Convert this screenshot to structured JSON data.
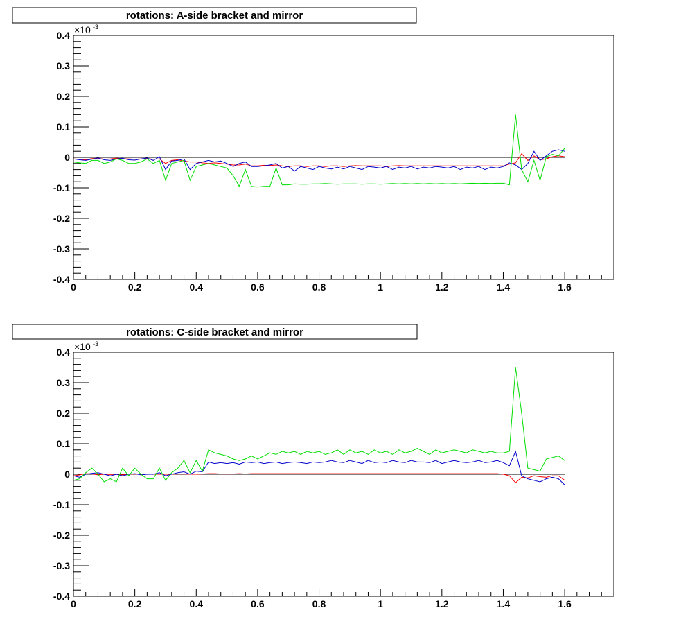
{
  "chart_data": [
    {
      "type": "line",
      "title": "rotations: A-side bracket and mirror",
      "xlim": [
        0,
        1.76
      ],
      "ylim": [
        -0.4,
        0.4
      ],
      "y_exponent_label": "×10",
      "y_exponent_power": "-3",
      "x_ticks": [
        "0",
        "0.2",
        "0.4",
        "0.6",
        "0.8",
        "1",
        "1.2",
        "1.4",
        "1.6"
      ],
      "y_ticks": [
        "-0.4",
        "-0.3",
        "-0.2",
        "-0.1",
        "0",
        "0.1",
        "0.2",
        "0.3",
        "0.4"
      ],
      "reference_line_y": 0,
      "x": [
        0,
        0.02,
        0.04,
        0.06,
        0.08,
        0.1,
        0.12,
        0.14,
        0.16,
        0.18,
        0.2,
        0.22,
        0.24,
        0.26,
        0.28,
        0.3,
        0.32,
        0.34,
        0.36,
        0.38,
        0.4,
        0.42,
        0.44,
        0.46,
        0.48,
        0.5,
        0.52,
        0.54,
        0.56,
        0.58,
        0.6,
        0.62,
        0.64,
        0.66,
        0.68,
        0.7,
        0.72,
        0.74,
        0.76,
        0.78,
        0.8,
        0.82,
        0.84,
        0.86,
        0.88,
        0.9,
        0.92,
        0.94,
        0.96,
        0.98,
        1.0,
        1.02,
        1.04,
        1.06,
        1.08,
        1.1,
        1.12,
        1.14,
        1.16,
        1.18,
        1.2,
        1.22,
        1.24,
        1.26,
        1.28,
        1.3,
        1.32,
        1.34,
        1.36,
        1.38,
        1.4,
        1.42,
        1.44,
        1.46,
        1.48,
        1.5,
        1.52,
        1.54,
        1.56,
        1.58,
        1.6
      ],
      "series": [
        {
          "color": "#ff0000",
          "values": [
            -0.005,
            -0.006,
            -0.008,
            -0.004,
            -0.003,
            -0.006,
            -0.005,
            -0.003,
            -0.004,
            -0.005,
            -0.006,
            -0.005,
            -0.004,
            -0.006,
            -0.005,
            -0.02,
            -0.01,
            -0.008,
            -0.012,
            -0.015,
            -0.015,
            -0.018,
            -0.02,
            -0.018,
            -0.02,
            -0.022,
            -0.025,
            -0.025,
            -0.022,
            -0.028,
            -0.028,
            -0.026,
            -0.027,
            -0.025,
            -0.028,
            -0.03,
            -0.028,
            -0.028,
            -0.03,
            -0.028,
            -0.028,
            -0.03,
            -0.028,
            -0.028,
            -0.03,
            -0.028,
            -0.027,
            -0.028,
            -0.028,
            -0.028,
            -0.028,
            -0.03,
            -0.028,
            -0.027,
            -0.028,
            -0.028,
            -0.028,
            -0.028,
            -0.028,
            -0.028,
            -0.028,
            -0.028,
            -0.028,
            -0.028,
            -0.028,
            -0.028,
            -0.028,
            -0.028,
            -0.028,
            -0.028,
            -0.028,
            -0.022,
            -0.018,
            0.012,
            -0.01,
            0.005,
            -0.008,
            -0.005,
            0.002,
            0.005,
            0.002
          ]
        },
        {
          "color": "#0000cc",
          "values": [
            -0.005,
            -0.008,
            -0.01,
            -0.006,
            -0.002,
            -0.008,
            -0.01,
            -0.005,
            -0.003,
            -0.008,
            -0.009,
            -0.005,
            -0.002,
            -0.01,
            0.002,
            -0.04,
            -0.012,
            -0.01,
            -0.005,
            -0.04,
            -0.02,
            -0.015,
            -0.01,
            -0.015,
            -0.012,
            -0.02,
            -0.03,
            -0.02,
            -0.015,
            -0.03,
            -0.03,
            -0.028,
            -0.025,
            -0.02,
            -0.035,
            -0.03,
            -0.045,
            -0.03,
            -0.035,
            -0.04,
            -0.03,
            -0.035,
            -0.038,
            -0.032,
            -0.038,
            -0.03,
            -0.035,
            -0.04,
            -0.03,
            -0.032,
            -0.035,
            -0.03,
            -0.04,
            -0.032,
            -0.035,
            -0.03,
            -0.038,
            -0.032,
            -0.035,
            -0.03,
            -0.032,
            -0.035,
            -0.03,
            -0.04,
            -0.032,
            -0.035,
            -0.03,
            -0.04,
            -0.032,
            -0.035,
            -0.03,
            -0.018,
            -0.025,
            -0.04,
            -0.02,
            0.02,
            -0.01,
            0.005,
            0.02,
            0.025,
            0.02
          ]
        },
        {
          "color": "#00dd00",
          "values": [
            -0.015,
            -0.018,
            -0.02,
            -0.01,
            -0.01,
            -0.02,
            -0.015,
            -0.005,
            -0.01,
            -0.02,
            -0.02,
            -0.015,
            -0.005,
            -0.02,
            -0.01,
            -0.075,
            -0.02,
            -0.015,
            -0.01,
            -0.075,
            -0.03,
            -0.025,
            -0.02,
            -0.025,
            -0.03,
            -0.035,
            -0.06,
            -0.095,
            -0.04,
            -0.095,
            -0.097,
            -0.095,
            -0.095,
            -0.035,
            -0.09,
            -0.09,
            -0.087,
            -0.088,
            -0.088,
            -0.087,
            -0.087,
            -0.086,
            -0.087,
            -0.088,
            -0.087,
            -0.087,
            -0.087,
            -0.088,
            -0.087,
            -0.087,
            -0.088,
            -0.087,
            -0.086,
            -0.087,
            -0.086,
            -0.087,
            -0.086,
            -0.087,
            -0.086,
            -0.087,
            -0.086,
            -0.087,
            -0.086,
            -0.087,
            -0.086,
            -0.085,
            -0.086,
            -0.085,
            -0.086,
            -0.085,
            -0.085,
            -0.09,
            0.14,
            -0.04,
            -0.08,
            -0.01,
            -0.075,
            0.002,
            0.01,
            0.005,
            0.03
          ]
        }
      ]
    },
    {
      "type": "line",
      "title": "rotations: C-side bracket and mirror",
      "xlim": [
        0,
        1.76
      ],
      "ylim": [
        -0.4,
        0.4
      ],
      "y_exponent_label": "×10",
      "y_exponent_power": "-3",
      "x_ticks": [
        "0",
        "0.2",
        "0.4",
        "0.6",
        "0.8",
        "1",
        "1.2",
        "1.4",
        "1.6"
      ],
      "y_ticks": [
        "-0.4",
        "-0.3",
        "-0.2",
        "-0.1",
        "0",
        "0.1",
        "0.2",
        "0.3",
        "0.4"
      ],
      "reference_line_y": 0,
      "x": [
        0,
        0.02,
        0.04,
        0.06,
        0.08,
        0.1,
        0.12,
        0.14,
        0.16,
        0.18,
        0.2,
        0.22,
        0.24,
        0.26,
        0.28,
        0.3,
        0.32,
        0.34,
        0.36,
        0.38,
        0.4,
        0.42,
        0.44,
        0.46,
        0.48,
        0.5,
        0.52,
        0.54,
        0.56,
        0.58,
        0.6,
        0.62,
        0.64,
        0.66,
        0.68,
        0.7,
        0.72,
        0.74,
        0.76,
        0.78,
        0.8,
        0.82,
        0.84,
        0.86,
        0.88,
        0.9,
        0.92,
        0.94,
        0.96,
        0.98,
        1.0,
        1.02,
        1.04,
        1.06,
        1.08,
        1.1,
        1.12,
        1.14,
        1.16,
        1.18,
        1.2,
        1.22,
        1.24,
        1.26,
        1.28,
        1.3,
        1.32,
        1.34,
        1.36,
        1.38,
        1.4,
        1.42,
        1.44,
        1.46,
        1.48,
        1.5,
        1.52,
        1.54,
        1.56,
        1.58,
        1.6
      ],
      "series": [
        {
          "color": "#ff0000",
          "values": [
            -0.005,
            -0.002,
            0.002,
            0.001,
            -0.002,
            0.0,
            -0.001,
            0.0,
            -0.002,
            0.0,
            0.001,
            -0.001,
            0.0,
            0.0,
            0.0,
            0.0,
            0.0,
            0.001,
            0.001,
            0.0,
            0.0,
            0.001,
            0.002,
            0.002,
            0.001,
            0.001,
            0.001,
            0.002,
            0.001,
            0.002,
            0.002,
            0.002,
            0.002,
            0.002,
            0.002,
            0.002,
            0.002,
            0.002,
            0.002,
            0.002,
            0.002,
            0.002,
            0.002,
            0.002,
            0.002,
            0.002,
            0.002,
            0.002,
            0.002,
            0.002,
            0.002,
            0.002,
            0.002,
            0.002,
            0.002,
            0.002,
            0.002,
            0.002,
            0.002,
            0.002,
            0.002,
            0.002,
            0.002,
            0.002,
            0.002,
            0.002,
            0.002,
            0.002,
            0.002,
            0.002,
            0.0,
            -0.005,
            -0.028,
            -0.01,
            -0.012,
            -0.005,
            -0.008,
            -0.01,
            -0.005,
            -0.005,
            -0.02
          ]
        },
        {
          "color": "#0000cc",
          "values": [
            -0.005,
            -0.01,
            0.0,
            0.003,
            0.005,
            0.0,
            -0.005,
            0.0,
            -0.005,
            0.0,
            0.002,
            -0.002,
            0.0,
            0.0,
            0.005,
            -0.005,
            0.0,
            0.005,
            0.008,
            0.0,
            0.01,
            0.008,
            0.04,
            0.035,
            0.038,
            0.035,
            0.038,
            0.033,
            0.04,
            0.038,
            0.04,
            0.035,
            0.038,
            0.04,
            0.035,
            0.038,
            0.04,
            0.038,
            0.035,
            0.04,
            0.038,
            0.04,
            0.045,
            0.04,
            0.038,
            0.045,
            0.04,
            0.035,
            0.045,
            0.038,
            0.04,
            0.038,
            0.045,
            0.04,
            0.038,
            0.045,
            0.04,
            0.04,
            0.038,
            0.045,
            0.035,
            0.04,
            0.045,
            0.04,
            0.038,
            0.04,
            0.045,
            0.038,
            0.04,
            0.045,
            0.038,
            0.028,
            0.075,
            -0.005,
            -0.015,
            -0.02,
            -0.025,
            -0.015,
            -0.01,
            -0.015,
            -0.035
          ]
        },
        {
          "color": "#00dd00",
          "values": [
            -0.02,
            -0.015,
            0.005,
            0.02,
            0.0,
            -0.025,
            -0.015,
            -0.025,
            0.02,
            -0.005,
            0.02,
            0.0,
            -0.015,
            -0.015,
            0.02,
            -0.02,
            0.005,
            0.02,
            0.045,
            0.005,
            0.045,
            0.01,
            0.08,
            0.07,
            0.065,
            0.06,
            0.05,
            0.045,
            0.05,
            0.06,
            0.05,
            0.06,
            0.07,
            0.065,
            0.075,
            0.07,
            0.075,
            0.065,
            0.075,
            0.07,
            0.075,
            0.065,
            0.07,
            0.08,
            0.065,
            0.08,
            0.07,
            0.075,
            0.065,
            0.08,
            0.07,
            0.075,
            0.065,
            0.08,
            0.07,
            0.075,
            0.085,
            0.075,
            0.065,
            0.08,
            0.07,
            0.075,
            0.08,
            0.075,
            0.07,
            0.08,
            0.075,
            0.07,
            0.075,
            0.07,
            0.07,
            0.075,
            0.35,
            0.2,
            0.02,
            0.015,
            0.01,
            0.05,
            0.055,
            0.06,
            0.045
          ]
        }
      ]
    }
  ]
}
